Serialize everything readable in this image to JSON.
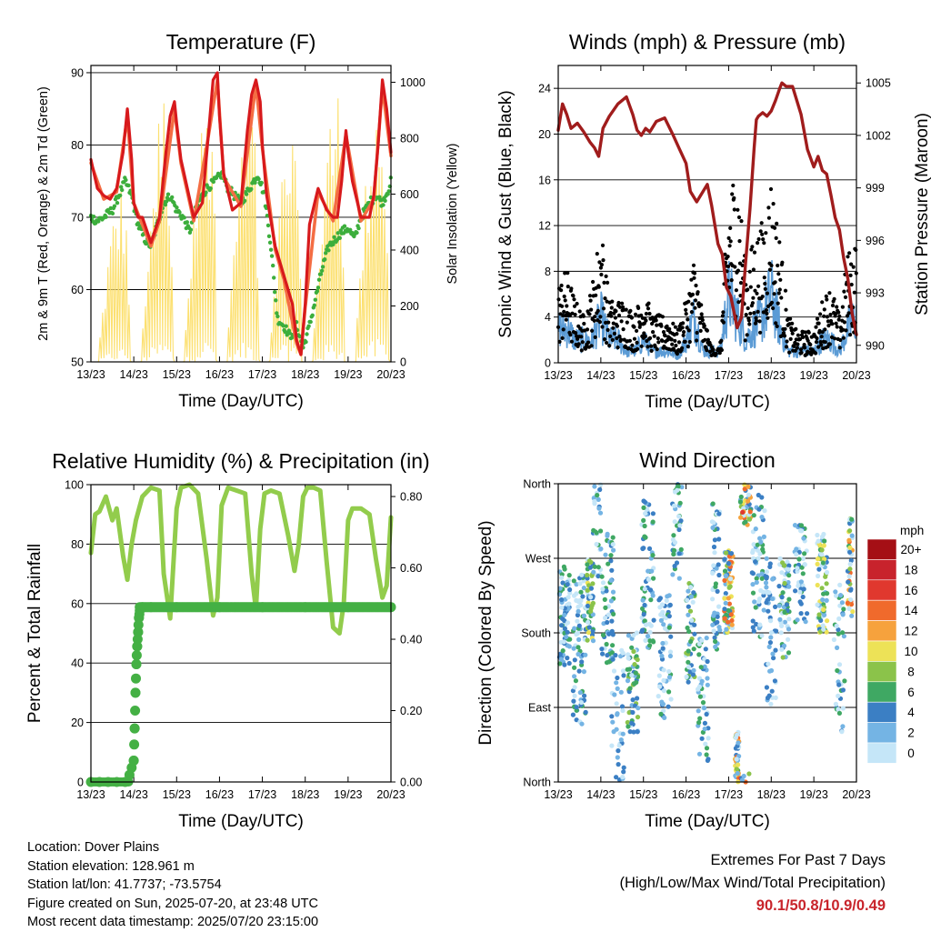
{
  "panels": {
    "temperature": {
      "title": "Temperature (F)",
      "ylabel_left": "2m & 9m T (Red, Orange) & 2m Td (Green)",
      "ylabel_right": "Solar Insolation (Yellow)",
      "xlabel": "Time (Day/UTC)"
    },
    "winds": {
      "title": "Winds (mph) & Pressure (mb)",
      "ylabel_left": "Sonic Wind & Gust (Blue, Black)",
      "ylabel_right": "Station Pressure (Maroon)",
      "xlabel": "Time (Day/UTC)"
    },
    "humidity": {
      "title": "Relative Humidity (%) & Precipitation (in)",
      "ylabel_left": "Percent & Total Rainfall",
      "xlabel": "Time (Day/UTC)"
    },
    "direction": {
      "title": "Wind Direction",
      "ylabel_left": "Direction (Colored By Speed)",
      "xlabel": "Time (Day/UTC)",
      "legend_title": "mph"
    }
  },
  "colors": {
    "temp2m": "#d7191c",
    "temp9m": "#f46d43",
    "dewpoint": "#3cae3c",
    "solar": "#fce070",
    "wind": "#5b9bd5",
    "gust": "#000000",
    "pressure": "#a01c1c",
    "rh": "#92cc4c",
    "precip": "#44b044"
  },
  "info": {
    "location": "Location: Dover Plains",
    "elevation": "Station elevation: 128.961 m",
    "latlon": "Station lat/lon: 41.7737; -73.5754",
    "created": "Figure created on Sun, 2025-07-20, at 23:48 UTC",
    "recent": "Most recent data timestamp: 2025/07/20 23:15:00"
  },
  "extremes": {
    "title": "Extremes For Past 7 Days",
    "subtitle": "(High/Low/Max Wind/Total Precipitation)",
    "values": "90.1/50.8/10.9/0.49"
  },
  "chart_data": [
    {
      "id": "temperature",
      "type": "line",
      "x_ticks": [
        "13/23",
        "14/23",
        "15/23",
        "16/23",
        "17/23",
        "18/23",
        "19/23",
        "20/23"
      ],
      "xlim": [
        0,
        7
      ],
      "ylim_left": [
        50,
        91
      ],
      "ylim_right": [
        0,
        1060
      ],
      "y_ticks_left": [
        50,
        60,
        70,
        80,
        90
      ],
      "y_ticks_right": [
        0,
        200,
        400,
        600,
        800,
        1000
      ],
      "grid": true,
      "series": [
        {
          "key": "t2m",
          "axis": "left",
          "color_key": "temp2m",
          "x": [
            0,
            0.15,
            0.3,
            0.45,
            0.6,
            0.75,
            0.85,
            0.95,
            1.0,
            1.1,
            1.2,
            1.4,
            1.6,
            1.75,
            1.85,
            1.95,
            2.0,
            2.1,
            2.25,
            2.4,
            2.6,
            2.75,
            2.85,
            2.95,
            3.0,
            3.1,
            3.3,
            3.5,
            3.65,
            3.75,
            3.85,
            3.95,
            4.0,
            4.1,
            4.3,
            4.5,
            4.7,
            4.8,
            4.9,
            5.0,
            5.1,
            5.3,
            5.5,
            5.65,
            5.75,
            5.85,
            5.95,
            6.0,
            6.1,
            6.3,
            6.5,
            6.6,
            6.7,
            6.8,
            6.9,
            7.0
          ],
          "values": [
            78,
            74,
            73,
            72.5,
            74,
            79,
            85,
            78,
            72,
            70,
            70,
            66.5,
            70,
            79,
            84,
            86,
            83,
            78,
            74,
            70,
            72,
            82,
            89,
            90,
            84,
            76,
            71,
            72,
            82,
            87,
            89,
            86,
            80,
            73,
            66,
            62,
            58,
            53,
            51,
            58,
            69,
            74,
            71,
            70,
            70,
            75,
            82,
            79,
            75,
            70,
            70,
            73,
            80,
            89,
            85,
            79
          ]
        },
        {
          "key": "t9m",
          "axis": "left",
          "color_key": "temp9m",
          "x": [
            0,
            0.3,
            0.6,
            0.85,
            1.0,
            1.4,
            1.6,
            1.95,
            2.1,
            2.4,
            2.75,
            2.95,
            3.1,
            3.5,
            3.85,
            4.0,
            4.3,
            4.5,
            4.8,
            4.9,
            5.0,
            5.3,
            5.65,
            5.95,
            6.3,
            6.6,
            6.8,
            7.0
          ],
          "values": [
            77.5,
            72.5,
            73.5,
            84,
            72,
            66,
            69.5,
            85,
            77.5,
            69.5,
            81.5,
            89,
            75.5,
            71.5,
            88.5,
            79.5,
            65.5,
            61.5,
            52.5,
            51,
            57.5,
            73.5,
            69.5,
            81.5,
            69.5,
            72.5,
            88,
            78.5
          ]
        },
        {
          "key": "td2m",
          "axis": "left",
          "color_key": "dewpoint",
          "style": "dots",
          "x": [
            0,
            0.15,
            0.3,
            0.5,
            0.65,
            0.8,
            0.95,
            1.1,
            1.25,
            1.4,
            1.55,
            1.7,
            1.85,
            2.0,
            2.15,
            2.3,
            2.5,
            2.7,
            2.9,
            3.05,
            3.2,
            3.35,
            3.5,
            3.7,
            3.9,
            4.05,
            4.2,
            4.35,
            4.5,
            4.65,
            4.8,
            4.95,
            5.1,
            5.25,
            5.4,
            5.55,
            5.7,
            5.85,
            6.0,
            6.15,
            6.3,
            6.5,
            6.65,
            6.8,
            6.95,
            7.0
          ],
          "values": [
            70,
            69.5,
            70,
            71,
            73,
            75,
            73,
            69,
            67,
            66,
            69,
            72,
            73,
            71,
            70,
            68,
            72,
            74,
            75,
            76,
            74,
            73,
            72,
            74,
            76,
            73,
            66,
            56,
            55,
            53.5,
            55,
            52,
            55,
            59,
            63,
            66,
            67,
            68,
            68.5,
            67,
            70,
            72,
            73,
            72,
            74,
            75
          ]
        },
        {
          "key": "solar",
          "axis": "right",
          "color_key": "solar",
          "days": [
            {
              "start": 0.15,
              "peak": 0.75,
              "end": 0.95,
              "max": 650
            },
            {
              "start": 1.15,
              "peak": 1.75,
              "end": 1.95,
              "max": 1000
            },
            {
              "start": 2.15,
              "peak": 2.8,
              "end": 2.95,
              "max": 1040
            },
            {
              "start": 3.15,
              "peak": 3.75,
              "end": 3.95,
              "max": 980
            },
            {
              "start": 4.15,
              "peak": 4.7,
              "end": 4.95,
              "max": 920
            },
            {
              "start": 5.15,
              "peak": 5.75,
              "end": 5.95,
              "max": 1000
            },
            {
              "start": 6.15,
              "peak": 6.75,
              "end": 6.98,
              "max": 1050
            }
          ]
        }
      ]
    },
    {
      "id": "winds",
      "type": "scatter",
      "x_ticks": [
        "13/23",
        "14/23",
        "15/23",
        "16/23",
        "17/23",
        "18/23",
        "19/23",
        "20/23"
      ],
      "xlim": [
        0,
        7
      ],
      "ylim_left": [
        0,
        26
      ],
      "ylim_right": [
        989,
        1006
      ],
      "y_ticks_left": [
        0,
        4,
        8,
        12,
        16,
        20,
        24
      ],
      "y_ticks_right": [
        990,
        993,
        996,
        999,
        1002,
        1005
      ],
      "grid": true,
      "series": [
        {
          "key": "pressure",
          "axis": "right",
          "color_key": "pressure",
          "x": [
            0,
            0.1,
            0.2,
            0.3,
            0.45,
            0.6,
            0.75,
            0.85,
            0.95,
            1.05,
            1.2,
            1.4,
            1.6,
            1.75,
            1.85,
            1.95,
            2.05,
            2.15,
            2.3,
            2.5,
            2.7,
            2.85,
            3.0,
            3.1,
            3.25,
            3.4,
            3.5,
            3.6,
            3.75,
            3.85,
            3.95,
            4.05,
            4.2,
            4.3,
            4.4,
            4.5,
            4.6,
            4.65,
            4.7,
            4.8,
            4.9,
            5.0,
            5.1,
            5.2,
            5.25,
            5.35,
            5.5,
            5.7,
            5.85,
            6.0,
            6.1,
            6.2,
            6.3,
            6.4,
            6.5,
            6.6,
            6.7,
            6.8,
            6.9,
            7.0
          ],
          "values": [
            1002.3,
            1003.8,
            1003.2,
            1002.4,
            1002.7,
            1002.2,
            1001.6,
            1001.3,
            1000.8,
            1002.4,
            1003.1,
            1003.8,
            1004.2,
            1003.2,
            1002.3,
            1002.0,
            1002.4,
            1002.2,
            1002.8,
            1003.0,
            1002.0,
            1001.2,
            1000.4,
            998.8,
            998.2,
            998.8,
            999.2,
            998.0,
            995.8,
            995.2,
            993.3,
            992.8,
            991.0,
            991.6,
            994.8,
            997.8,
            1001.3,
            1002.9,
            1003.1,
            1003.3,
            1003.1,
            1003.4,
            1004.0,
            1004.7,
            1005.0,
            1004.8,
            1004.8,
            1003.2,
            1001.2,
            1000.2,
            1000.8,
            1000.0,
            999.8,
            998.6,
            997.3,
            996.6,
            995.0,
            993.8,
            991.8,
            990.6
          ]
        }
      ],
      "wind_envelope": {
        "x": [
          0,
          0.2,
          0.4,
          0.6,
          0.8,
          1.0,
          1.2,
          1.4,
          1.6,
          1.8,
          2.0,
          2.2,
          2.4,
          2.6,
          2.8,
          3.0,
          3.2,
          3.4,
          3.6,
          3.8,
          4.0,
          4.2,
          4.4,
          4.6,
          4.8,
          5.0,
          5.2,
          5.4,
          5.6,
          5.8,
          6.0,
          6.2,
          6.4,
          6.6,
          6.8,
          7.0
        ],
        "wind": [
          3,
          3,
          2,
          2,
          2,
          4,
          2,
          2,
          1,
          1,
          2,
          1,
          1,
          1,
          0.5,
          2,
          4,
          1,
          1,
          1,
          6,
          4,
          2,
          3,
          4,
          6,
          3,
          1,
          1,
          1,
          1,
          2,
          2,
          1,
          3,
          4
        ],
        "gust": [
          5,
          6,
          4,
          3,
          5,
          9,
          4,
          4,
          4,
          3,
          5,
          3,
          3,
          3,
          2,
          4,
          7,
          3,
          1,
          1,
          11,
          13,
          6,
          8,
          9,
          12,
          8,
          3,
          2,
          2,
          2,
          4,
          5,
          3,
          7,
          8
        ]
      }
    },
    {
      "id": "humidity",
      "type": "line",
      "x_ticks": [
        "13/23",
        "14/23",
        "15/23",
        "16/23",
        "17/23",
        "18/23",
        "19/23",
        "20/23"
      ],
      "xlim": [
        0,
        7
      ],
      "ylim_left": [
        0,
        100
      ],
      "ylim_right": [
        0,
        0.8333
      ],
      "y_ticks_left": [
        0,
        20,
        40,
        60,
        80,
        100
      ],
      "y_ticks_right": [
        "0.00",
        "0.20",
        "0.40",
        "0.60",
        "0.80"
      ],
      "grid": true,
      "series": [
        {
          "key": "rh",
          "axis": "left",
          "color_key": "rh",
          "x": [
            0,
            0.1,
            0.2,
            0.35,
            0.5,
            0.6,
            0.75,
            0.85,
            0.95,
            1.05,
            1.2,
            1.4,
            1.6,
            1.7,
            1.85,
            2.0,
            2.1,
            2.3,
            2.5,
            2.7,
            2.85,
            2.95,
            3.05,
            3.2,
            3.4,
            3.6,
            3.75,
            3.85,
            3.95,
            4.05,
            4.2,
            4.4,
            4.6,
            4.75,
            4.85,
            4.95,
            5.05,
            5.2,
            5.35,
            5.5,
            5.65,
            5.8,
            5.9,
            6.0,
            6.1,
            6.3,
            6.5,
            6.65,
            6.8,
            6.9,
            7.0
          ],
          "values": [
            77,
            90,
            91,
            96,
            88,
            92,
            76,
            68,
            80,
            88,
            96,
            99,
            98,
            70,
            55,
            92,
            99,
            100,
            97,
            75,
            56,
            62,
            93,
            99,
            98,
            97,
            70,
            58,
            85,
            97,
            98,
            97,
            83,
            71,
            80,
            96,
            99,
            99,
            98,
            74,
            52,
            50,
            60,
            88,
            92,
            92,
            90,
            75,
            62,
            66,
            89
          ]
        },
        {
          "key": "precip",
          "axis": "right",
          "color_key": "precip",
          "style": "dots",
          "x": [
            0,
            0.2,
            0.4,
            0.6,
            0.8,
            0.9,
            0.95,
            1.0,
            1.02,
            1.04,
            1.06,
            1.08,
            1.1,
            1.12,
            1.14,
            1.2,
            1.4,
            2,
            3,
            4,
            5,
            6,
            7
          ],
          "values": [
            0,
            0,
            0,
            0,
            0,
            0.02,
            0.04,
            0.06,
            0.15,
            0.25,
            0.33,
            0.38,
            0.42,
            0.46,
            0.48,
            0.49,
            0.49,
            0.49,
            0.49,
            0.49,
            0.49,
            0.49,
            0.49
          ]
        }
      ]
    },
    {
      "id": "direction",
      "type": "scatter",
      "x_ticks": [
        "13/23",
        "14/23",
        "15/23",
        "16/23",
        "17/23",
        "18/23",
        "19/23",
        "20/23"
      ],
      "xlim": [
        0,
        7
      ],
      "ylim": [
        0,
        360
      ],
      "y_tick_values": [
        0,
        90,
        180,
        270,
        360
      ],
      "y_ticks": [
        "North",
        "East",
        "South",
        "West",
        "North"
      ],
      "grid": true,
      "legend": {
        "title": "mph",
        "labels": [
          "20+",
          "18",
          "16",
          "14",
          "12",
          "10",
          "8",
          "6",
          "4",
          "2",
          "0"
        ],
        "colors": [
          "#a50f15",
          "#c8232c",
          "#e0382e",
          "#f06a2c",
          "#f6a23d",
          "#ede257",
          "#8bc34a",
          "#3fa863",
          "#3b7fc4",
          "#74b4e4",
          "#c5e6f8"
        ]
      }
    }
  ]
}
